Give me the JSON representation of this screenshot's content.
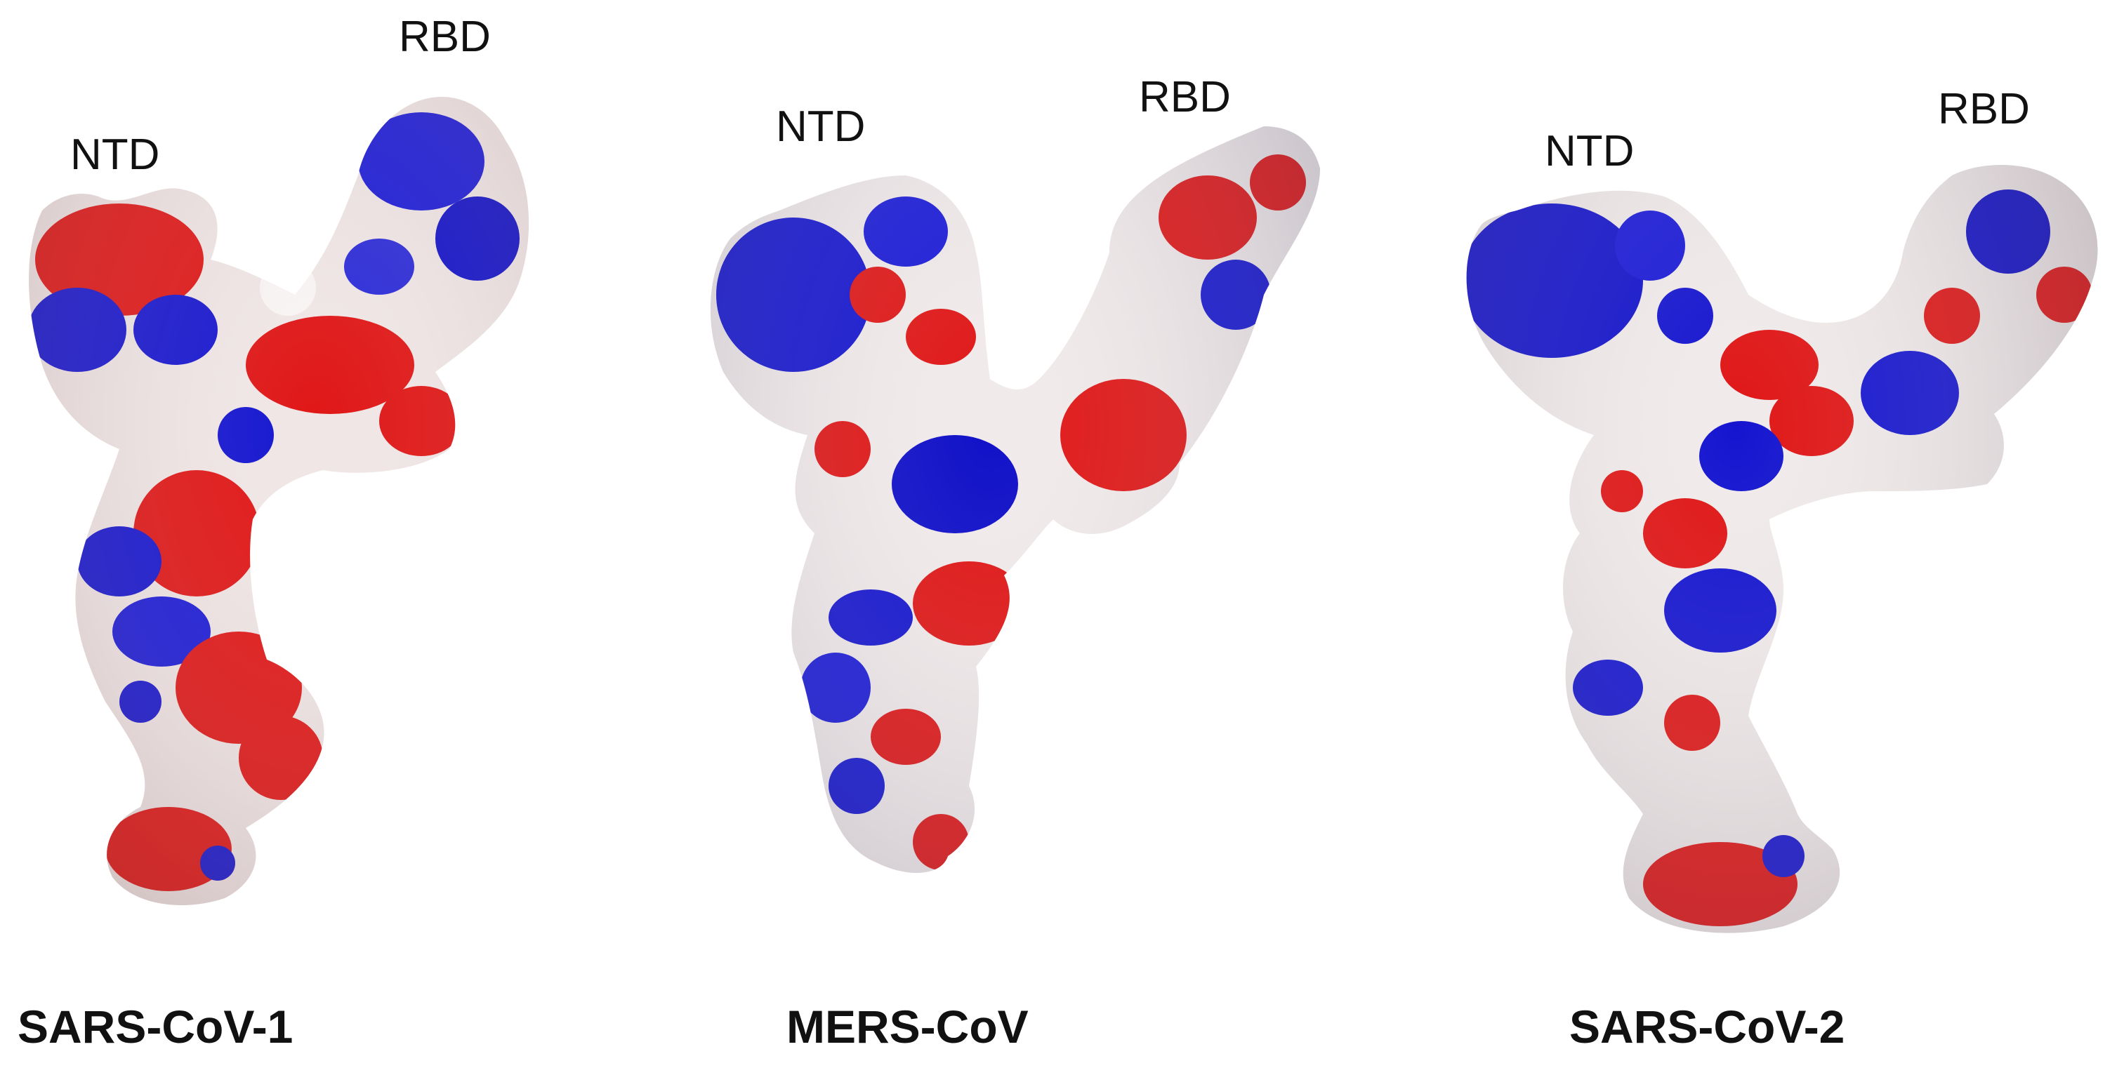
{
  "panels": [
    {
      "species": "SARS-CoV-1",
      "ntd_label": "NTD",
      "rbd_label": "RBD"
    },
    {
      "species": "MERS-CoV",
      "ntd_label": "NTD",
      "rbd_label": "RBD"
    },
    {
      "species": "SARS-CoV-2",
      "ntd_label": "NTD",
      "rbd_label": "RBD"
    }
  ],
  "colors": {
    "positive": "#1010d8",
    "negative": "#e01616",
    "neutral": "#f2ecec",
    "background": "#ffffff"
  }
}
